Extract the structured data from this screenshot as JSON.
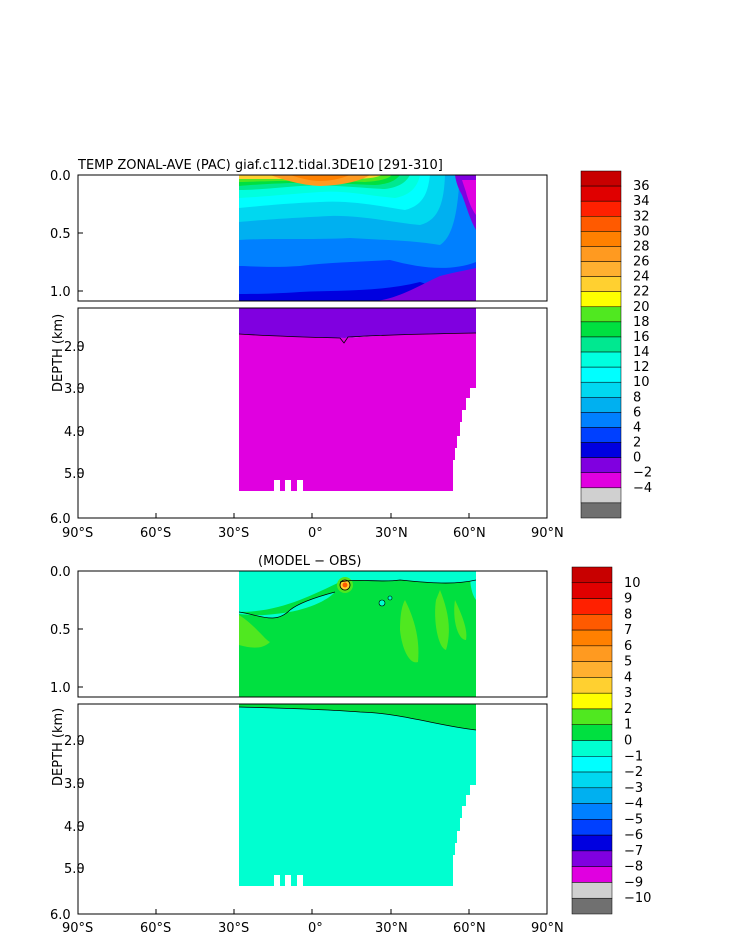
{
  "chart_data": [
    {
      "type": "heatmap",
      "title": "TEMP ZONAL-AVE (PAC) giaf.c112.tidal.3DE10 [291-310]",
      "ylabel": "DEPTH (km)",
      "x_ticks": [
        "90°S",
        "60°S",
        "30°S",
        "0°",
        "30°N",
        "60°N",
        "90°N"
      ],
      "y_ticks_upper": [
        "0.0",
        "0.5",
        "1.0"
      ],
      "y_ticks_lower": [
        "2.0",
        "3.0",
        "4.0",
        "5.0",
        "6.0"
      ],
      "colorbar_labels": [
        "36",
        "34",
        "32",
        "30",
        "28",
        "26",
        "24",
        "22",
        "20",
        "18",
        "16",
        "14",
        "12",
        "10",
        "8",
        "6",
        "4",
        "2",
        "0",
        "−2",
        "−4"
      ],
      "colors": [
        "#c80000",
        "#e00000",
        "#ff2000",
        "#ff5a00",
        "#ff8000",
        "#ff9a20",
        "#ffb030",
        "#ffd030",
        "#ffff00",
        "#50e820",
        "#00e040",
        "#00e890",
        "#00ffdf",
        "#00ffff",
        "#00d8f0",
        "#00b0f0",
        "#0080ff",
        "#0040ff",
        "#0000e0",
        "#8000e0",
        "#e000e0",
        "#d0d0d0",
        "#707070"
      ]
    },
    {
      "type": "heatmap",
      "title": "(MODEL − OBS)",
      "ylabel": "DEPTH (km)",
      "x_ticks": [
        "90°S",
        "60°S",
        "30°S",
        "0°",
        "30°N",
        "60°N",
        "90°N"
      ],
      "y_ticks_upper": [
        "0.0",
        "0.5",
        "1.0"
      ],
      "y_ticks_lower": [
        "2.0",
        "3.0",
        "4.0",
        "5.0",
        "6.0"
      ],
      "colorbar_labels": [
        "10",
        "9",
        "8",
        "7",
        "6",
        "5",
        "4",
        "3",
        "2",
        "1",
        "0",
        "−1",
        "−2",
        "−3",
        "−4",
        "−5",
        "−6",
        "−7",
        "−8",
        "−9",
        "−10"
      ],
      "colors": [
        "#c80000",
        "#e00000",
        "#ff2000",
        "#ff5a00",
        "#ff8000",
        "#ff9a20",
        "#ffb030",
        "#ffd030",
        "#ffff00",
        "#50e820",
        "#00e040",
        "#00ffd0",
        "#00ffff",
        "#00d8f0",
        "#00b0f0",
        "#0080ff",
        "#0040ff",
        "#0000e0",
        "#8000e0",
        "#e000e0",
        "#d0d0d0",
        "#707070"
      ]
    }
  ]
}
